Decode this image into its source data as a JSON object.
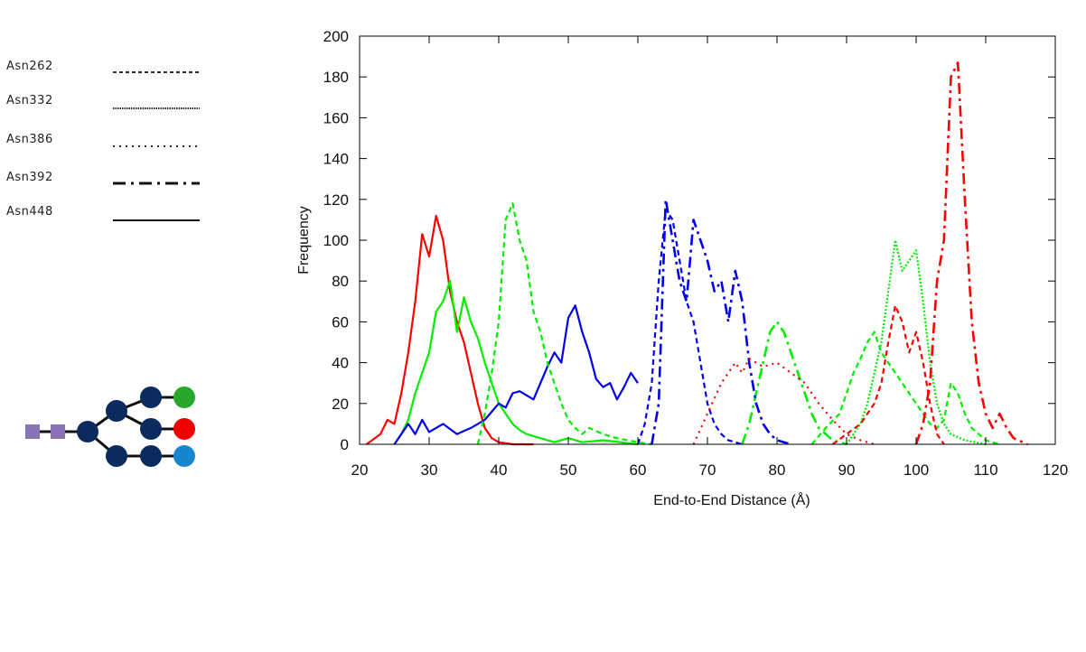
{
  "chart_data": {
    "type": "line",
    "title": "",
    "xlabel": "End-to-End Distance (Å)",
    "ylabel": "Frequency",
    "xlim": [
      20,
      120
    ],
    "ylim": [
      0,
      200
    ],
    "xticks": [
      20,
      30,
      40,
      50,
      60,
      70,
      80,
      90,
      100,
      110,
      120
    ],
    "yticks": [
      0,
      20,
      40,
      60,
      80,
      100,
      120,
      140,
      160,
      180,
      200
    ],
    "grid": false,
    "legend": {
      "placement": "left",
      "entries": [
        {
          "label": "Asn262",
          "style": "dashed"
        },
        {
          "label": "Asn332",
          "style": "dotted-dense"
        },
        {
          "label": "Asn386",
          "style": "dotted-sparse"
        },
        {
          "label": "Asn392",
          "style": "dash-dot"
        },
        {
          "label": "Asn448",
          "style": "solid"
        }
      ]
    },
    "colors": {
      "red": "#ff0000",
      "green": "#00ee00",
      "blue": "#0000ee"
    },
    "series": [
      {
        "site": "Asn448",
        "color": "red",
        "style": "solid",
        "points": [
          [
            21,
            0
          ],
          [
            23,
            5
          ],
          [
            24,
            12
          ],
          [
            25,
            10
          ],
          [
            26,
            25
          ],
          [
            27,
            45
          ],
          [
            28,
            70
          ],
          [
            29,
            103
          ],
          [
            30,
            92
          ],
          [
            31,
            112
          ],
          [
            32,
            100
          ],
          [
            33,
            75
          ],
          [
            34,
            60
          ],
          [
            35,
            50
          ],
          [
            36,
            35
          ],
          [
            37,
            20
          ],
          [
            38,
            8
          ],
          [
            39,
            3
          ],
          [
            40,
            1
          ],
          [
            42,
            0
          ],
          [
            45,
            0
          ]
        ]
      },
      {
        "site": "Asn448",
        "color": "green",
        "style": "solid",
        "points": [
          [
            25,
            0
          ],
          [
            26,
            5
          ],
          [
            27,
            12
          ],
          [
            28,
            25
          ],
          [
            29,
            35
          ],
          [
            30,
            45
          ],
          [
            31,
            65
          ],
          [
            32,
            70
          ],
          [
            33,
            80
          ],
          [
            34,
            55
          ],
          [
            35,
            72
          ],
          [
            36,
            60
          ],
          [
            37,
            52
          ],
          [
            38,
            40
          ],
          [
            39,
            30
          ],
          [
            40,
            20
          ],
          [
            41,
            15
          ],
          [
            42,
            10
          ],
          [
            43,
            7
          ],
          [
            44,
            5
          ],
          [
            46,
            3
          ],
          [
            48,
            1
          ],
          [
            50,
            3
          ],
          [
            52,
            1
          ],
          [
            55,
            2
          ],
          [
            60,
            0
          ]
        ]
      },
      {
        "site": "Asn448",
        "color": "blue",
        "style": "solid",
        "points": [
          [
            25,
            0
          ],
          [
            27,
            10
          ],
          [
            28,
            5
          ],
          [
            29,
            12
          ],
          [
            30,
            6
          ],
          [
            32,
            10
          ],
          [
            34,
            5
          ],
          [
            36,
            8
          ],
          [
            38,
            12
          ],
          [
            40,
            20
          ],
          [
            41,
            18
          ],
          [
            42,
            25
          ],
          [
            43,
            26
          ],
          [
            44,
            24
          ],
          [
            45,
            22
          ],
          [
            46,
            30
          ],
          [
            47,
            38
          ],
          [
            48,
            45
          ],
          [
            49,
            40
          ],
          [
            50,
            62
          ],
          [
            51,
            68
          ],
          [
            52,
            55
          ],
          [
            53,
            45
          ],
          [
            54,
            32
          ],
          [
            55,
            28
          ],
          [
            56,
            30
          ],
          [
            57,
            22
          ],
          [
            58,
            28
          ],
          [
            59,
            35
          ],
          [
            60,
            30
          ]
        ]
      },
      {
        "site": "Asn262",
        "color": "green",
        "style": "dashed",
        "points": [
          [
            37,
            0
          ],
          [
            38,
            15
          ],
          [
            39,
            35
          ],
          [
            40,
            60
          ],
          [
            41,
            110
          ],
          [
            42,
            118
          ],
          [
            43,
            100
          ],
          [
            44,
            90
          ],
          [
            45,
            65
          ],
          [
            46,
            55
          ],
          [
            47,
            40
          ],
          [
            48,
            30
          ],
          [
            49,
            20
          ],
          [
            50,
            12
          ],
          [
            51,
            8
          ],
          [
            52,
            5
          ],
          [
            53,
            8
          ],
          [
            55,
            5
          ],
          [
            57,
            3
          ],
          [
            60,
            1
          ],
          [
            62,
            0
          ]
        ]
      },
      {
        "site": "Asn262",
        "color": "blue",
        "style": "dashed",
        "points": [
          [
            60,
            0
          ],
          [
            61,
            10
          ],
          [
            62,
            30
          ],
          [
            63,
            80
          ],
          [
            64,
            115
          ],
          [
            65,
            110
          ],
          [
            66,
            90
          ],
          [
            67,
            70
          ],
          [
            68,
            60
          ],
          [
            69,
            40
          ],
          [
            70,
            20
          ],
          [
            71,
            10
          ],
          [
            72,
            5
          ],
          [
            73,
            2
          ],
          [
            75,
            0
          ]
        ]
      },
      {
        "site": "Asn262",
        "color": "green",
        "style": "dash-dot",
        "points": [
          [
            75,
            0
          ],
          [
            76,
            10
          ],
          [
            77,
            25
          ],
          [
            78,
            40
          ],
          [
            79,
            55
          ],
          [
            80,
            60
          ],
          [
            81,
            55
          ],
          [
            82,
            45
          ],
          [
            83,
            35
          ],
          [
            84,
            25
          ],
          [
            85,
            15
          ],
          [
            86,
            8
          ],
          [
            87,
            5
          ],
          [
            88,
            2
          ],
          [
            90,
            0
          ]
        ]
      },
      {
        "site": "Asn392",
        "color": "blue",
        "style": "dash-dot",
        "points": [
          [
            62,
            0
          ],
          [
            63,
            20
          ],
          [
            64,
            120
          ],
          [
            65,
            100
          ],
          [
            66,
            80
          ],
          [
            67,
            70
          ],
          [
            68,
            110
          ],
          [
            69,
            100
          ],
          [
            70,
            90
          ],
          [
            71,
            75
          ],
          [
            72,
            80
          ],
          [
            73,
            60
          ],
          [
            74,
            85
          ],
          [
            75,
            70
          ],
          [
            76,
            40
          ],
          [
            77,
            20
          ],
          [
            78,
            10
          ],
          [
            79,
            5
          ],
          [
            80,
            2
          ],
          [
            82,
            0
          ]
        ]
      },
      {
        "site": "Asn386",
        "color": "red",
        "style": "dotted-sparse",
        "points": [
          [
            68,
            0
          ],
          [
            70,
            15
          ],
          [
            72,
            30
          ],
          [
            74,
            40
          ],
          [
            75,
            35
          ],
          [
            76,
            42
          ],
          [
            78,
            38
          ],
          [
            80,
            40
          ],
          [
            82,
            35
          ],
          [
            84,
            30
          ],
          [
            86,
            20
          ],
          [
            88,
            12
          ],
          [
            90,
            5
          ],
          [
            92,
            2
          ],
          [
            94,
            0
          ]
        ]
      },
      {
        "site": "Asn262",
        "color": "green",
        "style": "dashed",
        "points": [
          [
            85,
            0
          ],
          [
            87,
            8
          ],
          [
            89,
            15
          ],
          [
            90,
            25
          ],
          [
            91,
            35
          ],
          [
            92,
            42
          ],
          [
            93,
            50
          ],
          [
            94,
            55
          ],
          [
            95,
            45
          ],
          [
            96,
            40
          ],
          [
            97,
            35
          ],
          [
            98,
            30
          ],
          [
            99,
            25
          ],
          [
            100,
            20
          ],
          [
            101,
            15
          ],
          [
            102,
            10
          ],
          [
            103,
            8
          ],
          [
            104,
            12
          ],
          [
            105,
            30
          ],
          [
            106,
            25
          ],
          [
            107,
            15
          ],
          [
            108,
            8
          ],
          [
            109,
            5
          ],
          [
            110,
            2
          ],
          [
            112,
            0
          ]
        ]
      },
      {
        "site": "Asn332",
        "color": "green",
        "style": "dotted-dense",
        "points": [
          [
            90,
            0
          ],
          [
            92,
            10
          ],
          [
            93,
            20
          ],
          [
            94,
            35
          ],
          [
            95,
            50
          ],
          [
            96,
            75
          ],
          [
            97,
            100
          ],
          [
            98,
            85
          ],
          [
            99,
            90
          ],
          [
            100,
            95
          ],
          [
            101,
            70
          ],
          [
            102,
            40
          ],
          [
            103,
            20
          ],
          [
            104,
            10
          ],
          [
            105,
            5
          ],
          [
            107,
            2
          ],
          [
            110,
            0
          ]
        ]
      },
      {
        "site": "Asn262",
        "color": "red",
        "style": "dashed",
        "points": [
          [
            88,
            0
          ],
          [
            90,
            5
          ],
          [
            92,
            10
          ],
          [
            94,
            20
          ],
          [
            95,
            30
          ],
          [
            96,
            50
          ],
          [
            97,
            68
          ],
          [
            98,
            60
          ],
          [
            99,
            45
          ],
          [
            100,
            55
          ],
          [
            101,
            40
          ],
          [
            102,
            20
          ],
          [
            103,
            5
          ],
          [
            104,
            0
          ]
        ]
      },
      {
        "site": "Asn392",
        "color": "red",
        "style": "dash-dot",
        "points": [
          [
            100,
            0
          ],
          [
            101,
            10
          ],
          [
            102,
            30
          ],
          [
            103,
            80
          ],
          [
            104,
            100
          ],
          [
            105,
            180
          ],
          [
            106,
            187
          ],
          [
            107,
            120
          ],
          [
            108,
            60
          ],
          [
            109,
            30
          ],
          [
            110,
            15
          ],
          [
            111,
            8
          ],
          [
            112,
            15
          ],
          [
            113,
            8
          ],
          [
            114,
            3
          ],
          [
            116,
            0
          ]
        ]
      }
    ]
  },
  "glycan": {
    "colors": {
      "square": "#8a73b5",
      "navy": "#0b2a5e",
      "green": "#27a82a",
      "red": "#f00000",
      "blue": "#1785d0",
      "link": "#111111"
    },
    "symbols": [
      "square",
      "square",
      "navy",
      "navy",
      "navy",
      "navy",
      "navy",
      "navy",
      "navy",
      "green",
      "red",
      "blue"
    ]
  }
}
